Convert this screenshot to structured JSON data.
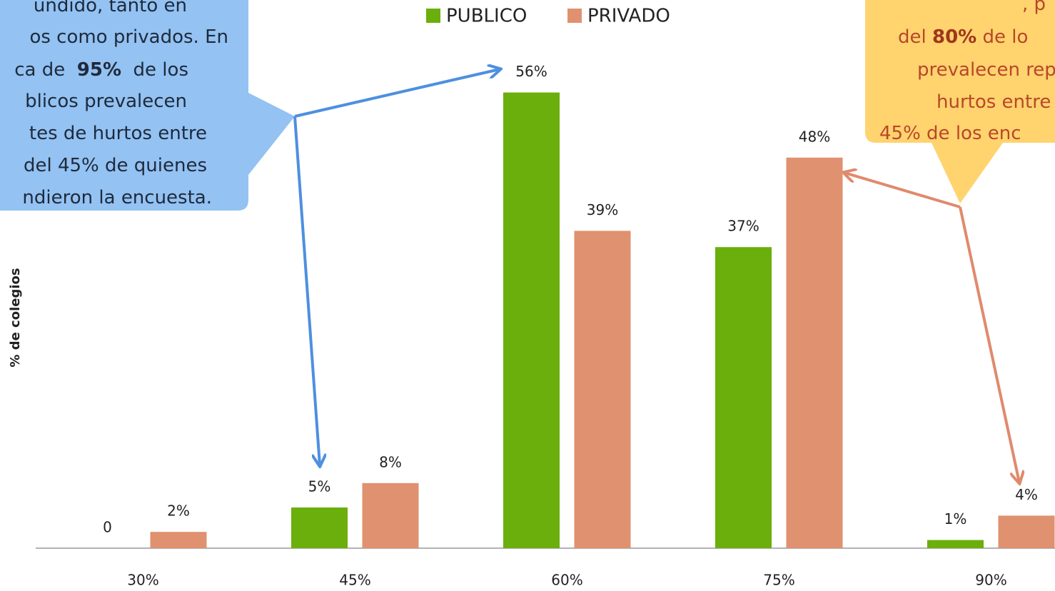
{
  "chart_data": {
    "type": "bar",
    "categories": [
      "30%",
      "45%",
      "60%",
      "75%",
      "90%"
    ],
    "series": [
      {
        "name": "PUBLICO",
        "color": "#6aaf0c",
        "values": [
          0,
          5,
          56,
          37,
          1
        ],
        "value_labels": [
          "0",
          "5%",
          "56%",
          "37%",
          "1%"
        ]
      },
      {
        "name": "PRIVADO",
        "color": "#e0916f",
        "values": [
          2,
          8,
          39,
          48,
          4
        ],
        "value_labels": [
          "2%",
          "8%",
          "39%",
          "48%",
          "4%"
        ]
      }
    ],
    "ylim": [
      0,
      60
    ],
    "y_label": "% de colegios",
    "legend": "top",
    "annotations": [
      {
        "color": "#93c2f3",
        "lines": [
          [
            "undido, tanto en"
          ],
          [
            "os como privados. En"
          ],
          [
            "ca de  ",
            {
              "text": "95%",
              "bold": true
            },
            "  de los"
          ],
          [
            "blicos prevalecen"
          ],
          [
            "tes de hurtos entre"
          ],
          [
            "del 45% de quienes"
          ],
          [
            "ndieron la encuesta."
          ]
        ]
      },
      {
        "color": "#ffd36e",
        "lines": [
          [
            ", p"
          ],
          [
            "del ",
            {
              "text": "80%",
              "bold": true
            },
            " de lo"
          ],
          [
            "prevalecen rep"
          ],
          [
            "hurtos entre"
          ],
          [
            "45% de los enc"
          ]
        ]
      }
    ]
  }
}
